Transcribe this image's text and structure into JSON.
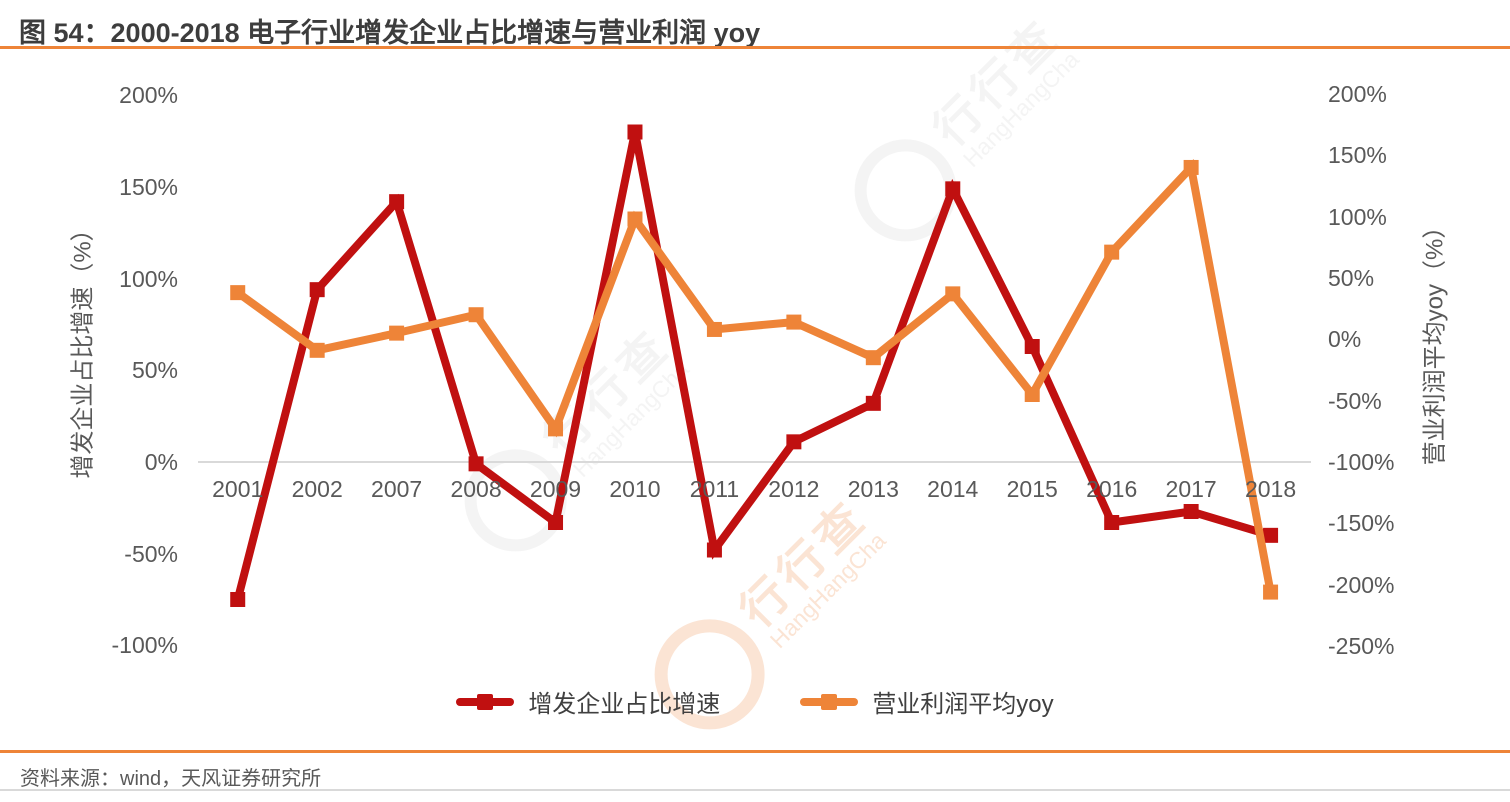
{
  "title": "图 54：2000-2018 电子行业增发企业占比增速与营业利润 yoy",
  "source": "资料来源：wind，天风证券研究所",
  "watermark": {
    "cn": "行行查",
    "en": "HangHangCha"
  },
  "colors": {
    "series_red": "#C01010",
    "series_orange": "#EE8438",
    "rule_orange": "#EE8438",
    "gridline_gray": "#d9d9d9",
    "axis_text_gray": "#595959"
  },
  "chart_data": {
    "type": "line",
    "title": "图 54：2000-2018 电子行业增发企业占比增速与营业利润 yoy",
    "categories": [
      "2001",
      "2002",
      "2007",
      "2008",
      "2009",
      "2010",
      "2011",
      "2012",
      "2013",
      "2014",
      "2015",
      "2016",
      "2017",
      "2018"
    ],
    "series": [
      {
        "name": "增发企业占比增速",
        "axis": "left",
        "color": "#C01010",
        "values": [
          -75,
          94,
          142,
          -1,
          -33,
          180,
          -48,
          11,
          32,
          149,
          63,
          -33,
          -27,
          -40
        ]
      },
      {
        "name": "营业利润平均yoy",
        "axis": "right",
        "color": "#EE8438",
        "values": [
          38,
          -9,
          5,
          20,
          -73,
          98,
          8,
          14,
          -15,
          37,
          -45,
          71,
          140,
          -206
        ]
      }
    ],
    "left_axis": {
      "label": "增发企业占比增速（%）",
      "ticks": [
        200,
        150,
        100,
        50,
        0,
        -50,
        -100
      ],
      "min": -100,
      "max": 200,
      "tick_suffix": "%"
    },
    "right_axis": {
      "label": "营业利润平均yoy（%）",
      "ticks": [
        200,
        150,
        100,
        50,
        0,
        -50,
        -100,
        -150,
        -200,
        -250
      ],
      "min": -250,
      "max": 200,
      "tick_suffix": "%"
    },
    "grid": "single horizontal line at left-axis 0%",
    "legend_position": "bottom",
    "marker": "square"
  }
}
